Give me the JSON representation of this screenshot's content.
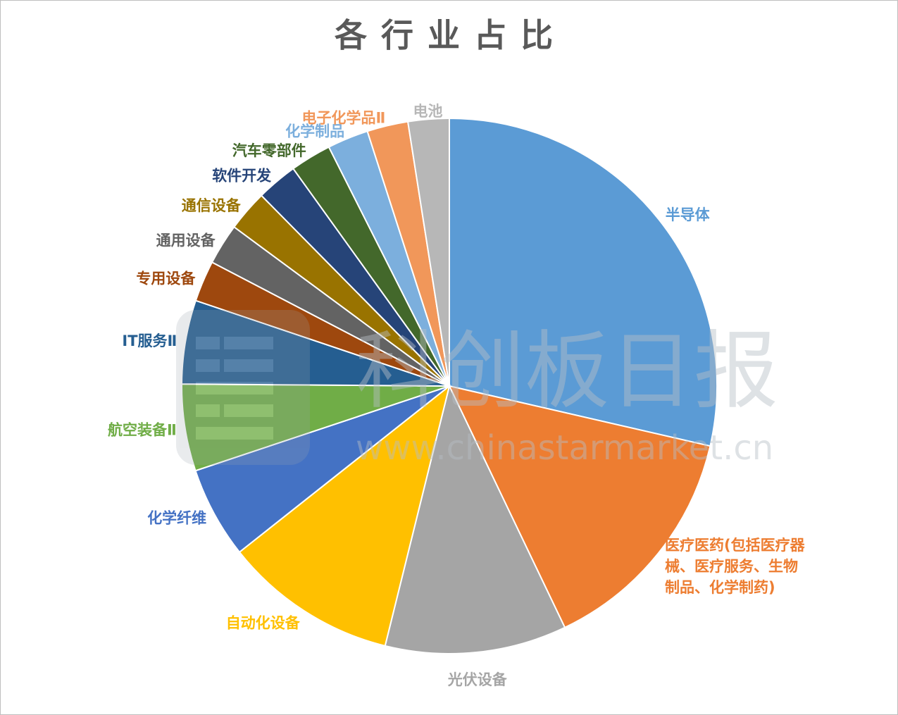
{
  "chart_data": {
    "type": "pie",
    "title": "各行业占比",
    "slices": [
      {
        "label": "半导体",
        "value": 30.0,
        "color": "#5B9BD5"
      },
      {
        "label": "医疗医药(包括医疗器械、医疗服务、生物制品、化学制药)",
        "label_lines": [
          "医疗医药(包括医疗器",
          "械、医疗服务、生物",
          "制品、化学制药)"
        ],
        "value": 15.0,
        "color": "#ED7D31"
      },
      {
        "label": "光伏设备",
        "value": 11.5,
        "color": "#A5A5A5"
      },
      {
        "label": "自动化设备",
        "value": 11.0,
        "color": "#FFC000"
      },
      {
        "label": "化学纤维",
        "value": 5.8,
        "color": "#4472C4"
      },
      {
        "label": "航空装备Ⅱ",
        "value": 5.5,
        "color": "#70AD47"
      },
      {
        "label": "IT服务Ⅱ",
        "value": 5.3,
        "color": "#255E91"
      },
      {
        "label": "专用设备",
        "value": 2.6,
        "color": "#9E480E"
      },
      {
        "label": "通用设备",
        "value": 2.6,
        "color": "#636363"
      },
      {
        "label": "通信设备",
        "value": 2.6,
        "color": "#997300"
      },
      {
        "label": "软件开发",
        "value": 2.6,
        "color": "#264478"
      },
      {
        "label": "汽车零部件",
        "value": 2.6,
        "color": "#43682B"
      },
      {
        "label": "化学制品",
        "value": 2.6,
        "color": "#7CAFDD"
      },
      {
        "label": "电子化学品Ⅱ",
        "value": 2.6,
        "color": "#F1975A"
      },
      {
        "label": "电池",
        "value": 2.6,
        "color": "#B7B7B7"
      }
    ],
    "legend": "none",
    "start_angle": "12 o'clock",
    "direction": "clockwise"
  },
  "watermark": {
    "name": "科创板日报",
    "url": "www.chinastarmarket.cn"
  }
}
